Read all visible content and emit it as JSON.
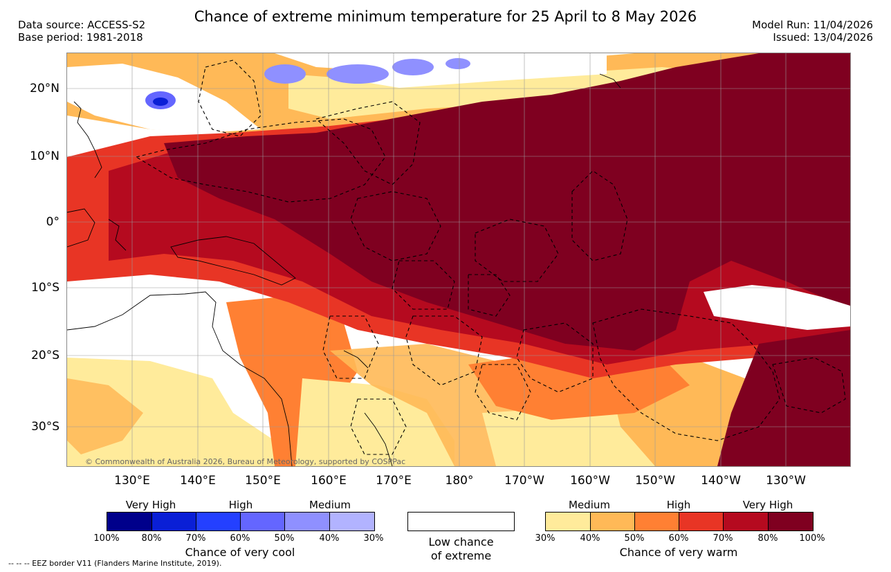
{
  "header": {
    "title": "Chance of extreme minimum temperature for 25 April to 8 May 2026",
    "data_source": "Data source: ACCESS-S2",
    "base_period": "Base period: 1981-2018",
    "model_run": "Model Run: 11/04/2026",
    "issued": "Issued: 13/04/2026"
  },
  "map": {
    "copyright": "© Commonwealth of Australia 2026, Bureau of Meteorology, supported by COSPPac",
    "lat_ticks": [
      "20°N",
      "10°N",
      "0°",
      "10°S",
      "20°S",
      "30°S"
    ],
    "lon_ticks": [
      "130°E",
      "140°E",
      "150°E",
      "160°E",
      "170°E",
      "180°",
      "170°W",
      "160°W",
      "150°W",
      "140°W",
      "130°W"
    ]
  },
  "legend": {
    "cool": {
      "levels": [
        "Very High",
        "High",
        "Medium"
      ],
      "percents": [
        "100%",
        "80%",
        "70%",
        "60%",
        "50%",
        "40%",
        "30%"
      ],
      "caption": "Chance of very cool",
      "colors": [
        "#00008b",
        "#0a1fd6",
        "#2440ff",
        "#6466ff",
        "#8f90ff",
        "#b2b3ff"
      ]
    },
    "neutral": {
      "caption_line1": "Low chance",
      "caption_line2": "of extreme",
      "color": "#ffffff"
    },
    "warm": {
      "levels": [
        "Medium",
        "High",
        "Very High"
      ],
      "percents": [
        "30%",
        "40%",
        "50%",
        "60%",
        "70%",
        "80%",
        "100%"
      ],
      "caption": "Chance of very warm",
      "colors": [
        "#ffeb9b",
        "#ffb957",
        "#ff8033",
        "#e83525",
        "#b50a1f",
        "#7f0020"
      ]
    }
  },
  "footer": {
    "eez_note": "-- -- -- EEZ border V11 (Flanders Marine Institute, 2019)."
  }
}
